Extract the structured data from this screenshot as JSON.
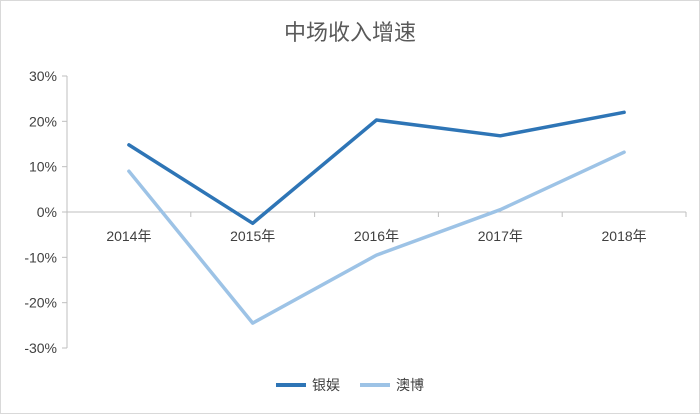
{
  "chart_data": {
    "type": "line",
    "title": "中场收入增速",
    "categories": [
      "2014年",
      "2015年",
      "2016年",
      "2017年",
      "2018年"
    ],
    "y_ticks": [
      "30%",
      "20%",
      "10%",
      "0%",
      "-10%",
      "-20%",
      "-30%"
    ],
    "ylim": [
      -30,
      30
    ],
    "grid": false,
    "legend_position": "bottom",
    "series": [
      {
        "name": "银娱",
        "color": "#2e75b6",
        "values": [
          14.8,
          -2.5,
          20.3,
          16.8,
          22.0
        ]
      },
      {
        "name": "澳博",
        "color": "#9dc3e6",
        "values": [
          9.0,
          -24.5,
          -9.5,
          0.5,
          13.2
        ]
      }
    ]
  }
}
